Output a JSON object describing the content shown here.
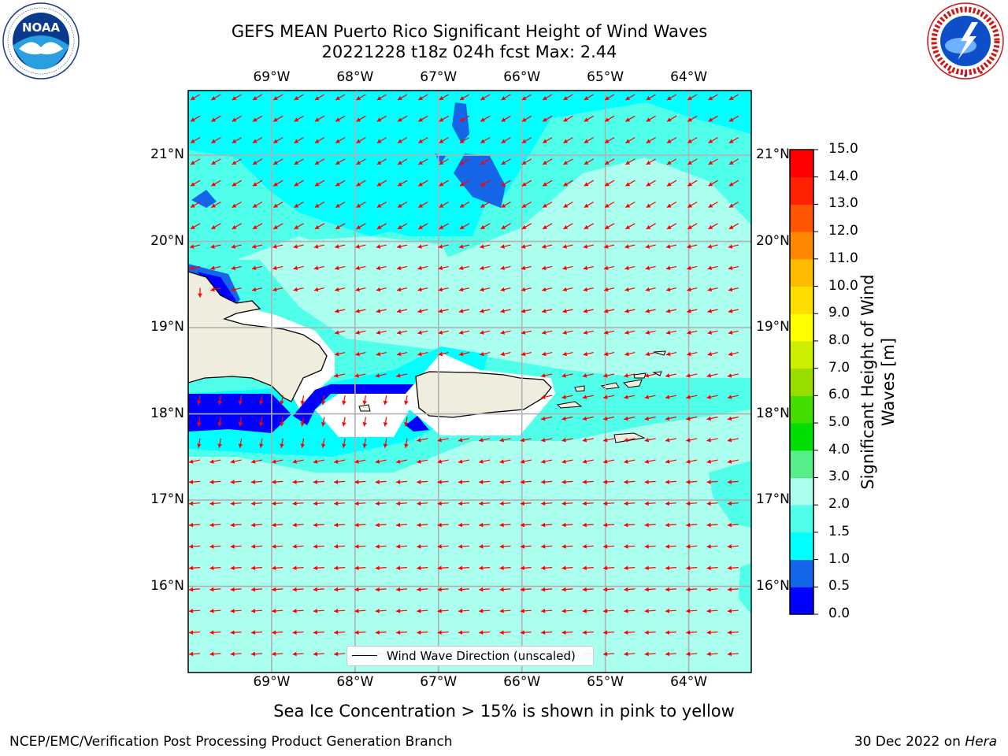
{
  "header": {
    "title_line1": "GEFS MEAN Puerto Rico Significant Height of Wind Waves",
    "title_line2": "20221228 t18z 024h fcst   Max: 2.44"
  },
  "logos": {
    "noaa": {
      "icon": "noaa-logo",
      "text": "NOAA",
      "ring_text": "NATIONAL OCEANIC AND ATMOSPHERIC ADMINISTRATION · U.S. DEPARTMENT OF COMMERCE"
    },
    "nws": {
      "icon": "nws-logo",
      "ring_text": "NATIONAL WEATHER SERVICE"
    }
  },
  "map": {
    "region": "Puerto Rico",
    "lon_range_deg": [
      -70.0,
      -63.25
    ],
    "lat_range_deg": [
      15.0,
      21.75
    ],
    "lon_labels": [
      "69°W",
      "68°W",
      "67°W",
      "66°W",
      "65°W",
      "64°W"
    ],
    "lat_labels": [
      "16°N",
      "17°N",
      "18°N",
      "19°N",
      "20°N",
      "21°N"
    ],
    "grid": true,
    "legend": {
      "label": "Wind Wave Direction (unscaled)",
      "placement": "bottom-center"
    },
    "arrow_color": "#ff0000",
    "land_color": "#efedde",
    "prevailing_direction": "westward"
  },
  "colorbar": {
    "label": "Significant Height of Wind Waves [m]",
    "min": 0.0,
    "max": 15.0,
    "ticks": [
      "0.0",
      "0.5",
      "1.0",
      "1.5",
      "2.0",
      "3.0",
      "4.0",
      "5.0",
      "6.0",
      "7.0",
      "8.0",
      "9.0",
      "10.0",
      "11.0",
      "12.0",
      "13.0",
      "14.0",
      "15.0"
    ],
    "colors": [
      "#0000ff",
      "#1565e8",
      "#00ffff",
      "#50ffea",
      "#aaffee",
      "#55ee88",
      "#00dd00",
      "#44dd00",
      "#99dd00",
      "#ccee00",
      "#ffff00",
      "#ffdd00",
      "#ffbb00",
      "#ff8800",
      "#ff5500",
      "#ff2200",
      "#ff0000"
    ]
  },
  "caption": "Sea Ice Concentration > 15% is shown in pink to yellow",
  "footer": {
    "left": "NCEP/EMC/Verification Post Processing Product Generation Branch",
    "right_date": "30 Dec 2022 on",
    "right_host": "Hera"
  }
}
